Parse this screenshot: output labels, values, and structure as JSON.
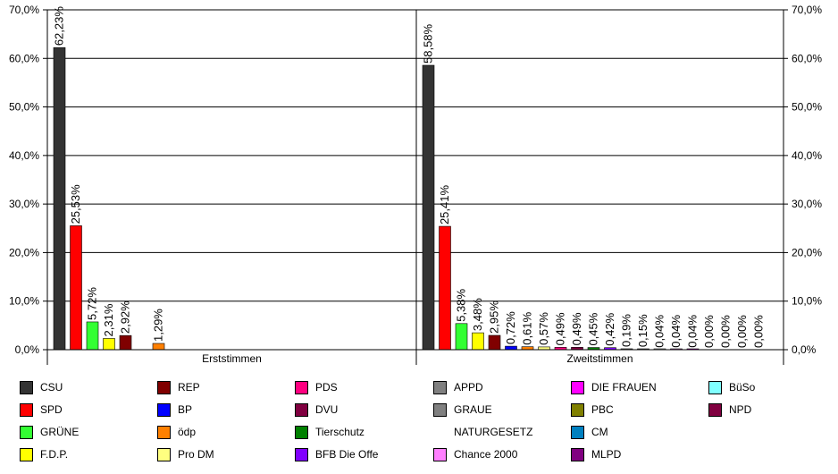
{
  "chart_data": {
    "type": "bar",
    "ylim": [
      0,
      70
    ],
    "yticks": [
      "0,0%",
      "10,0%",
      "20,0%",
      "30,0%",
      "40,0%",
      "50,0%",
      "60,0%",
      "70,0%"
    ],
    "grid": true,
    "panels": [
      {
        "label": "Erststimmen",
        "bars": [
          {
            "party": "CSU",
            "value": 62.23,
            "label": "62,23%"
          },
          {
            "party": "SPD",
            "value": 25.53,
            "label": "25,53%"
          },
          {
            "party": "GRÜNE",
            "value": 5.72,
            "label": "5,72%"
          },
          {
            "party": "F.D.P.",
            "value": 2.31,
            "label": "2,31%"
          },
          {
            "party": "REP",
            "value": 2.92,
            "label": "2,92%"
          },
          {
            "party": "BP",
            "value": null,
            "label": ""
          },
          {
            "party": "ödp",
            "value": 1.29,
            "label": "1,29%"
          }
        ]
      },
      {
        "label": "Zweitstimmen",
        "bars": [
          {
            "party": "CSU",
            "value": 58.58,
            "label": "58,58%"
          },
          {
            "party": "SPD",
            "value": 25.41,
            "label": "25,41%"
          },
          {
            "party": "GRÜNE",
            "value": 5.38,
            "label": "5,38%"
          },
          {
            "party": "F.D.P.",
            "value": 3.48,
            "label": "3,48%"
          },
          {
            "party": "REP",
            "value": 2.95,
            "label": "2,95%"
          },
          {
            "party": "BP",
            "value": 0.72,
            "label": "0,72%"
          },
          {
            "party": "ödp",
            "value": 0.61,
            "label": "0,61%"
          },
          {
            "party": "Pro DM",
            "value": 0.57,
            "label": "0,57%"
          },
          {
            "party": "PDS",
            "value": 0.49,
            "label": "0,49%"
          },
          {
            "party": "DVU",
            "value": 0.49,
            "label": "0,49%"
          },
          {
            "party": "Tierschutz",
            "value": 0.45,
            "label": "0,45%"
          },
          {
            "party": "BFB Die Offe",
            "value": 0.42,
            "label": "0,42%"
          },
          {
            "party": "APPD",
            "value": 0.19,
            "label": "0,19%"
          },
          {
            "party": "GRAUE",
            "value": 0.15,
            "label": "0,15%"
          },
          {
            "party": "NATURGESETZ",
            "value": 0.04,
            "label": "0,04%"
          },
          {
            "party": "Chance 2000",
            "value": 0.04,
            "label": "0,04%"
          },
          {
            "party": "DIE FRAUEN",
            "value": 0.04,
            "label": "0,04%"
          },
          {
            "party": "PBC",
            "value": 0.0,
            "label": "0,00%"
          },
          {
            "party": "CM",
            "value": 0.0,
            "label": "0,00%"
          },
          {
            "party": "MLPD",
            "value": 0.0,
            "label": "0,00%"
          },
          {
            "party": "BüSo",
            "value": 0.0,
            "label": "0,00%"
          }
        ]
      }
    ]
  },
  "legend": [
    {
      "name": "CSU",
      "color": "#333333"
    },
    {
      "name": "SPD",
      "color": "#ff0000"
    },
    {
      "name": "GRÜNE",
      "color": "#33ff33"
    },
    {
      "name": "F.D.P.",
      "color": "#ffff00"
    },
    {
      "name": "REP",
      "color": "#800000"
    },
    {
      "name": "BP",
      "color": "#0000ff"
    },
    {
      "name": "ödp",
      "color": "#ff8000"
    },
    {
      "name": "Pro DM",
      "color": "#ffff80"
    },
    {
      "name": "PDS",
      "color": "#ff0080"
    },
    {
      "name": "DVU",
      "color": "#800040"
    },
    {
      "name": "Tierschutz",
      "color": "#008000"
    },
    {
      "name": "BFB Die Offe",
      "color": "#8000ff"
    },
    {
      "name": "APPD",
      "color": "#808080"
    },
    {
      "name": "GRAUE",
      "color": "#808080"
    },
    {
      "name": "NATURGESETZ",
      "color": "#ffffff"
    },
    {
      "name": "Chance 2000",
      "color": "#ff80ff"
    },
    {
      "name": "DIE FRAUEN",
      "color": "#ff00ff"
    },
    {
      "name": "PBC",
      "color": "#808000"
    },
    {
      "name": "CM",
      "color": "#0080c0"
    },
    {
      "name": "MLPD",
      "color": "#800080"
    },
    {
      "name": "BüSo",
      "color": "#80ffff"
    },
    {
      "name": "NPD",
      "color": "#800040"
    }
  ]
}
